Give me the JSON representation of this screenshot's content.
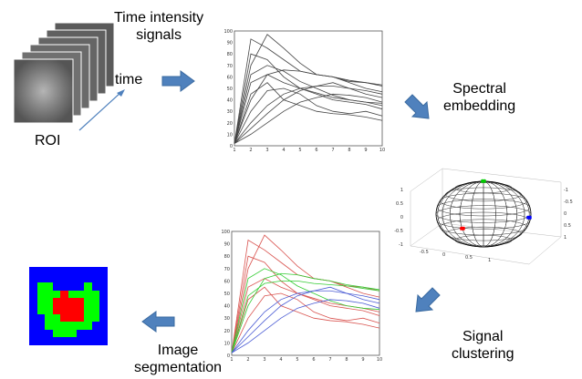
{
  "labels": {
    "time_intensity_signals": "Time intensity\nsignals",
    "time": "time",
    "roi": "ROI",
    "spectral_embedding": "Spectral\nembedding",
    "signal_clustering": "Signal\nclustering",
    "image_segmentation": "Image\nsegmentation"
  },
  "colors": {
    "arrow": "#4f81bd",
    "roi_frame": "#6b6b6b",
    "cluster_1": "#ff0000",
    "cluster_2": "#00cc00",
    "cluster_3": "#0000ff"
  },
  "chart_data": [
    {
      "type": "line",
      "x": [
        1,
        2,
        3,
        4,
        5,
        6,
        7,
        8,
        9,
        10
      ],
      "xlim": [
        1,
        10
      ],
      "ylim": [
        0,
        100
      ],
      "x_ticks": [
        1,
        2,
        3,
        4,
        5,
        6,
        7,
        8,
        9,
        10
      ],
      "y_ticks": [
        0,
        10,
        20,
        30,
        40,
        50,
        60,
        70,
        80,
        90,
        100
      ],
      "grid": false,
      "series": [
        {
          "values": [
            2,
            93,
            85,
            75,
            65,
            62,
            60,
            55,
            50,
            47
          ]
        },
        {
          "values": [
            2,
            70,
            97,
            85,
            72,
            62,
            60,
            56,
            55,
            52
          ]
        },
        {
          "values": [
            2,
            40,
            62,
            66,
            65,
            62,
            60,
            57,
            55,
            53
          ]
        },
        {
          "values": [
            2,
            80,
            75,
            60,
            50,
            45,
            40,
            38,
            36,
            32
          ]
        },
        {
          "values": [
            2,
            62,
            70,
            65,
            56,
            50,
            44,
            40,
            38,
            37
          ]
        },
        {
          "values": [
            2,
            20,
            35,
            45,
            50,
            52,
            52,
            50,
            48,
            45
          ]
        },
        {
          "values": [
            2,
            15,
            28,
            40,
            48,
            52,
            55,
            50,
            45,
            42
          ]
        },
        {
          "values": [
            2,
            55,
            62,
            55,
            50,
            46,
            42,
            40,
            38,
            35
          ]
        },
        {
          "values": [
            2,
            10,
            20,
            30,
            38,
            42,
            45,
            44,
            42,
            38
          ]
        },
        {
          "values": [
            2,
            30,
            48,
            50,
            45,
            35,
            30,
            28,
            30,
            26
          ]
        },
        {
          "values": [
            2,
            45,
            55,
            40,
            35,
            30,
            28,
            27,
            25,
            22
          ]
        }
      ]
    },
    {
      "type": "line",
      "x": [
        1,
        2,
        3,
        4,
        5,
        6,
        7,
        8,
        9,
        10
      ],
      "xlim": [
        1,
        10
      ],
      "ylim": [
        0,
        100
      ],
      "x_ticks": [
        1,
        2,
        3,
        4,
        5,
        6,
        7,
        8,
        9,
        10
      ],
      "y_ticks": [
        0,
        10,
        20,
        30,
        40,
        50,
        60,
        70,
        80,
        90,
        100
      ],
      "grid": false,
      "series": [
        {
          "color": "#d9534f",
          "values": [
            2,
            93,
            85,
            75,
            65,
            62,
            60,
            55,
            50,
            47
          ]
        },
        {
          "color": "#d9534f",
          "values": [
            2,
            70,
            97,
            85,
            72,
            62,
            60,
            56,
            55,
            52
          ]
        },
        {
          "color": "#d9534f",
          "values": [
            2,
            80,
            75,
            60,
            50,
            45,
            40,
            38,
            36,
            32
          ]
        },
        {
          "color": "#d9534f",
          "values": [
            2,
            55,
            62,
            55,
            50,
            46,
            42,
            40,
            38,
            35
          ]
        },
        {
          "color": "#d9534f",
          "values": [
            2,
            45,
            55,
            40,
            35,
            30,
            28,
            27,
            25,
            22
          ]
        },
        {
          "color": "#d9534f",
          "values": [
            2,
            30,
            48,
            50,
            45,
            35,
            30,
            28,
            30,
            26
          ]
        },
        {
          "color": "#33cc33",
          "values": [
            2,
            40,
            62,
            66,
            65,
            62,
            60,
            57,
            55,
            53
          ]
        },
        {
          "color": "#33cc33",
          "values": [
            2,
            62,
            70,
            65,
            56,
            50,
            44,
            40,
            38,
            37
          ]
        },
        {
          "color": "#33cc33",
          "values": [
            2,
            48,
            58,
            60,
            60,
            58,
            57,
            56,
            54,
            52
          ]
        },
        {
          "color": "#4a5bd4",
          "values": [
            2,
            20,
            35,
            45,
            50,
            52,
            52,
            50,
            48,
            45
          ]
        },
        {
          "color": "#4a5bd4",
          "values": [
            2,
            15,
            28,
            40,
            48,
            52,
            55,
            50,
            45,
            42
          ]
        },
        {
          "color": "#4a5bd4",
          "values": [
            2,
            10,
            20,
            30,
            38,
            42,
            45,
            44,
            42,
            38
          ]
        }
      ]
    },
    {
      "type": "scatter",
      "projection": "3d-sphere",
      "x_ticks": [
        "-0.5",
        "0",
        "0.5",
        "1"
      ],
      "y_ticks": [
        "-1",
        "-0.5",
        "0",
        "0.5",
        "1"
      ],
      "z_ticks": [
        "1",
        "0.5",
        "0",
        "-0.5",
        "-1"
      ],
      "clusters": [
        {
          "color": "#00cc00",
          "x": 0.05,
          "y": 0.1,
          "z": 0.95
        },
        {
          "color": "#ff0000",
          "x": -0.6,
          "y": 0.6,
          "z": -0.1
        },
        {
          "color": "#0000ff",
          "x": 0.9,
          "y": -0.3,
          "z": 0.0
        }
      ]
    }
  ],
  "segmentation": {
    "cols": 10,
    "rows": 10,
    "background": "#0000ff",
    "grid": [
      "0000000000",
      "0000000000",
      "0220000200",
      "0222322220",
      "0223333220",
      "0223333220",
      "0022333220",
      "0022222200",
      "0002220000",
      "0000000000"
    ],
    "palette": {
      "0": "#0000ff",
      "2": "#00ff00",
      "3": "#ff0000"
    }
  }
}
